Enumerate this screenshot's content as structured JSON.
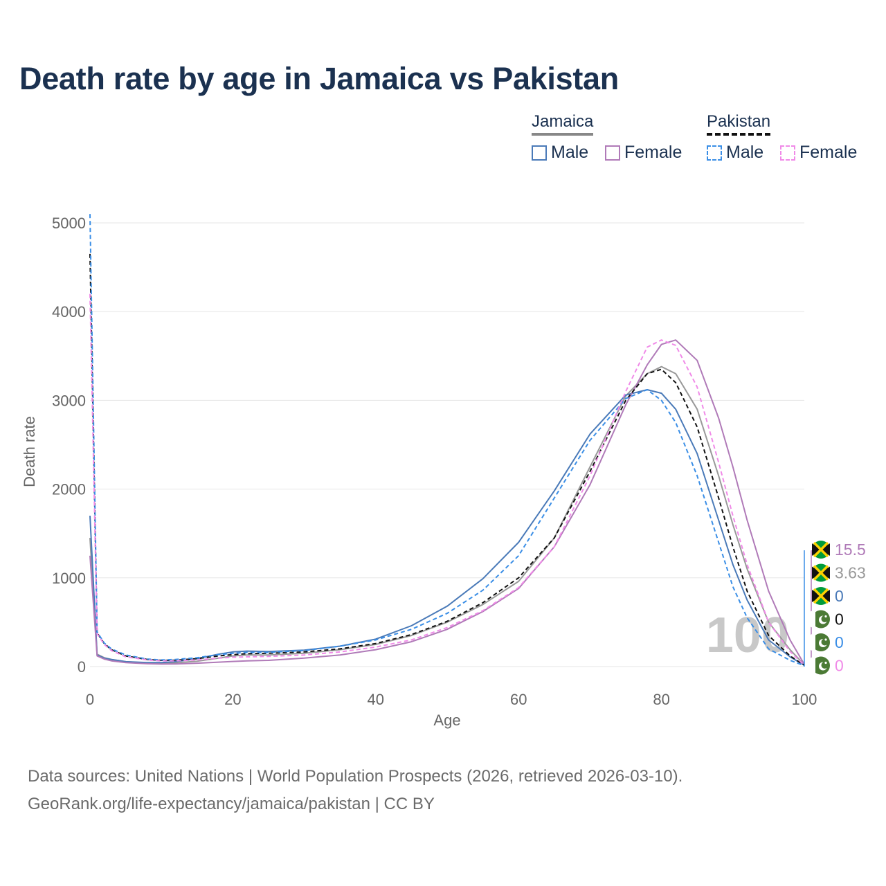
{
  "title": "Death rate by age in Jamaica vs Pakistan",
  "legend": {
    "groups": [
      {
        "name": "Jamaica",
        "style": "solid",
        "color": "#888888",
        "items": [
          {
            "label": "Male",
            "color": "#4a7ab8"
          },
          {
            "label": "Female",
            "color": "#b07ab8"
          }
        ]
      },
      {
        "name": "Pakistan",
        "style": "dashed",
        "color": "#111111",
        "items": [
          {
            "label": "Male",
            "color": "#3a8ee6"
          },
          {
            "label": "Female",
            "color": "#f08ae8"
          }
        ]
      }
    ]
  },
  "chart_data": {
    "type": "line",
    "xlabel": "Age",
    "ylabel": "Death rate",
    "xlim": [
      0,
      100
    ],
    "ylim": [
      0,
      5000
    ],
    "xticks": [
      0,
      20,
      40,
      60,
      80,
      100
    ],
    "yticks": [
      0,
      1000,
      2000,
      3000,
      4000,
      5000
    ],
    "grid": true,
    "watermark": "100",
    "x": [
      0,
      1,
      2,
      3,
      5,
      8,
      10,
      12,
      15,
      18,
      20,
      22,
      25,
      30,
      35,
      40,
      45,
      50,
      55,
      60,
      65,
      70,
      75,
      78,
      80,
      82,
      85,
      88,
      90,
      92,
      95,
      98,
      100
    ],
    "series": [
      {
        "name": "Jamaica Total",
        "color": "#999999",
        "dash": false,
        "values": [
          1450,
          140,
          100,
          80,
          55,
          40,
          38,
          42,
          60,
          95,
          120,
          130,
          130,
          150,
          190,
          250,
          350,
          500,
          700,
          960,
          1450,
          2250,
          3050,
          3300,
          3380,
          3300,
          2900,
          2150,
          1600,
          1100,
          500,
          190,
          20
        ]
      },
      {
        "name": "Jamaica Male",
        "color": "#4a7ab8",
        "dash": false,
        "values": [
          1700,
          130,
          95,
          80,
          55,
          45,
          45,
          55,
          90,
          140,
          165,
          175,
          170,
          185,
          230,
          310,
          460,
          680,
          990,
          1400,
          1980,
          2620,
          3060,
          3120,
          3080,
          2900,
          2400,
          1650,
          1150,
          750,
          300,
          110,
          15
        ]
      },
      {
        "name": "Jamaica Female",
        "color": "#b07ab8",
        "dash": false,
        "values": [
          1250,
          120,
          85,
          65,
          45,
          32,
          28,
          30,
          38,
          50,
          58,
          65,
          70,
          95,
          130,
          190,
          280,
          420,
          620,
          880,
          1350,
          2050,
          2950,
          3400,
          3630,
          3680,
          3450,
          2800,
          2250,
          1650,
          850,
          300,
          25
        ]
      },
      {
        "name": "Pakistan Total",
        "color": "#111111",
        "dash": true,
        "values": [
          4650,
          380,
          260,
          190,
          120,
          80,
          70,
          72,
          90,
          120,
          135,
          145,
          150,
          165,
          200,
          260,
          360,
          510,
          720,
          1000,
          1450,
          2200,
          3000,
          3300,
          3350,
          3200,
          2700,
          1900,
          1350,
          850,
          350,
          120,
          15
        ]
      },
      {
        "name": "Pakistan Male",
        "color": "#3a8ee6",
        "dash": true,
        "values": [
          5100,
          390,
          265,
          200,
          130,
          85,
          75,
          80,
          100,
          135,
          150,
          160,
          160,
          180,
          230,
          300,
          420,
          600,
          860,
          1250,
          1900,
          2550,
          3020,
          3120,
          3000,
          2750,
          2150,
          1400,
          900,
          550,
          200,
          70,
          10
        ]
      },
      {
        "name": "Pakistan Female",
        "color": "#f08ae8",
        "dash": true,
        "values": [
          4200,
          370,
          250,
          180,
          110,
          75,
          65,
          65,
          75,
          95,
          105,
          110,
          115,
          130,
          165,
          220,
          300,
          440,
          630,
          890,
          1350,
          2150,
          3100,
          3600,
          3680,
          3620,
          3150,
          2300,
          1700,
          1150,
          500,
          170,
          15
        ]
      }
    ],
    "end_labels": [
      {
        "country": "Jamaica",
        "value": "15.5",
        "color": "#b07ab8"
      },
      {
        "country": "Jamaica",
        "value": "3.63",
        "color": "#999999"
      },
      {
        "country": "Jamaica",
        "value": "0",
        "color": "#4a7ab8"
      },
      {
        "country": "Pakistan",
        "value": "0",
        "color": "#111111"
      },
      {
        "country": "Pakistan",
        "value": "0",
        "color": "#3a8ee6"
      },
      {
        "country": "Pakistan",
        "value": "0",
        "color": "#f08ae8"
      }
    ]
  },
  "footer": {
    "line1": "Data sources: United Nations | World Population Prospects (2026, retrieved 2026-03-10).",
    "line2": "GeoRank.org/life-expectancy/jamaica/pakistan | CC BY"
  }
}
